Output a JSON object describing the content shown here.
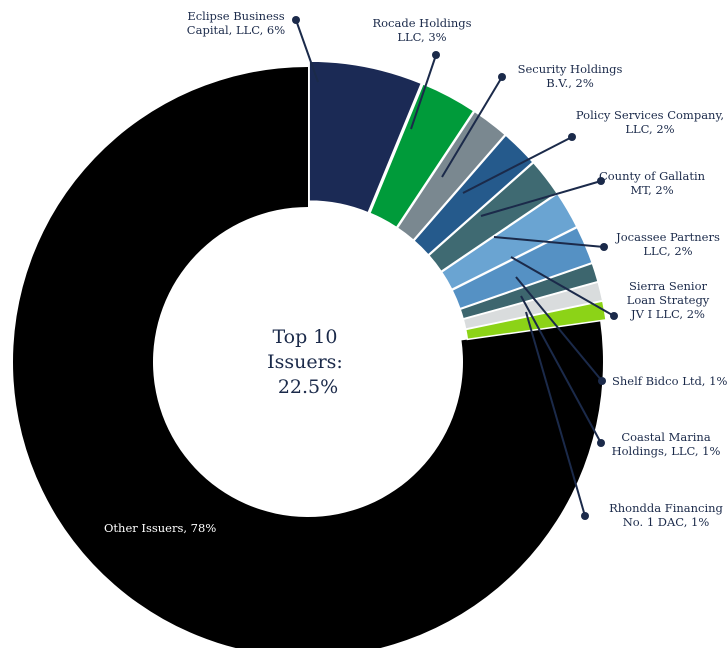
{
  "chart_data": {
    "type": "pie",
    "style": "donut",
    "center_label": [
      "Top 10",
      "Issuers:",
      "22.5%"
    ],
    "slices": [
      {
        "name": "Eclipse Business Capital, LLC",
        "value": 6,
        "label_lines": [
          "Eclipse Business",
          "Capital, LLC, 6%"
        ],
        "color": "#1b2a55"
      },
      {
        "name": "Rocade Holdings LLC",
        "value": 3,
        "label_lines": [
          "Rocade Holdings",
          "LLC, 3%"
        ],
        "color": "#009b3a"
      },
      {
        "name": "Security Holdings B.V.",
        "value": 2,
        "label_lines": [
          "Security Holdings",
          "B.V., 2%"
        ],
        "color": "#7a8890"
      },
      {
        "name": "Policy Services Company, LLC",
        "value": 2,
        "label_lines": [
          "Policy Services Company,",
          "LLC, 2%"
        ],
        "color": "#255a8c"
      },
      {
        "name": "County of Gallatin MT",
        "value": 2,
        "label_lines": [
          "County of Gallatin",
          "MT, 2%"
        ],
        "color": "#3f6a72"
      },
      {
        "name": "Jocassee Partners LLC",
        "value": 2,
        "label_lines": [
          "Jocassee Partners",
          "LLC, 2%"
        ],
        "color": "#6aa4d2"
      },
      {
        "name": "Sierra Senior Loan Strategy JV I LLC",
        "value": 2,
        "label_lines": [
          "Sierra Senior",
          "Loan Strategy",
          "JV I LLC, 2%"
        ],
        "color": "#5591c4"
      },
      {
        "name": "Shelf Bidco Ltd",
        "value": 1,
        "label_lines": [
          "Shelf Bidco Ltd, 1%"
        ],
        "color": "#3d666e"
      },
      {
        "name": "Coastal Marina Holdings, LLC",
        "value": 1,
        "label_lines": [
          "Coastal Marina",
          "Holdings, LLC, 1%"
        ],
        "color": "#d9dcdd"
      },
      {
        "name": "Rhondda Financing No. 1 DAC",
        "value": 1,
        "label_lines": [
          "Rhondda Financing",
          "No. 1 DAC, 1%"
        ],
        "color": "#8cd317"
      },
      {
        "name": "Other Issuers",
        "value": 78,
        "label_lines": [
          "Other Issuers, 78%"
        ],
        "color": "#000000"
      }
    ],
    "colors": {
      "leader": "#1b2a4a",
      "text": "#1b2a4a"
    }
  }
}
